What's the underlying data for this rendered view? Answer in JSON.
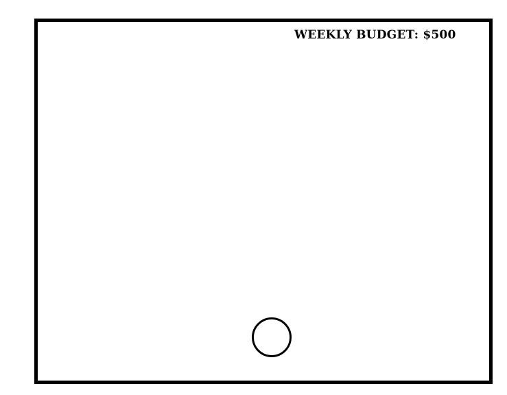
{
  "header": {
    "budget_label": "WEEKLY BUDGET: $500"
  },
  "controls": {
    "home_button_icon": "circle-button-icon"
  }
}
